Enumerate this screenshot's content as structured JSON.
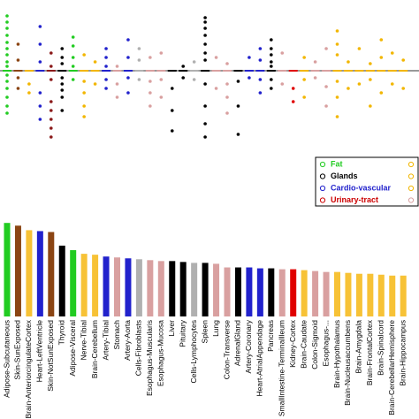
{
  "chart_data": [
    {
      "type": "strip",
      "ylim": [
        -90,
        65
      ],
      "groups": [
        {
          "color": "#22cc22",
          "values": [
            62,
            55,
            48,
            40,
            32,
            25,
            18,
            10,
            5,
            -5,
            -12,
            -20,
            -30,
            -40,
            -48
          ]
        },
        {
          "color": "#8b4513",
          "values": [
            30,
            12,
            -8,
            -20
          ]
        },
        {
          "color": "#f2b600",
          "values": [
            -15,
            -25
          ]
        },
        {
          "color": "#2222cc",
          "values": [
            50,
            30,
            10,
            -25,
            -40,
            -55
          ]
        },
        {
          "color": "#8b1a1a",
          "values": [
            20,
            5,
            -10,
            -35,
            -45,
            -55,
            -65,
            -75
          ]
        },
        {
          "color": "#000000",
          "values": [
            25,
            15,
            8,
            -8,
            -15,
            -22,
            -30,
            -45
          ]
        },
        {
          "color": "#22cc22",
          "values": [
            38,
            28,
            15,
            5,
            -10
          ]
        },
        {
          "color": "#f2b600",
          "values": [
            18,
            -12,
            -25,
            -40,
            -52
          ]
        },
        {
          "color": "#f2b600",
          "values": [
            10,
            -15
          ]
        },
        {
          "color": "#2222cc",
          "values": [
            25,
            15,
            5,
            -10,
            -20
          ]
        },
        {
          "color": "#d9a0a0",
          "values": [
            5,
            -15,
            -30
          ]
        },
        {
          "color": "#2222cc",
          "values": [
            35,
            15,
            -8,
            -25
          ]
        },
        {
          "color": "#b0b0b0",
          "values": [
            25,
            12,
            -10
          ]
        },
        {
          "color": "#d9a0a0",
          "values": [
            15,
            -12,
            -25,
            -40
          ]
        },
        {
          "color": "#d9a0a0",
          "values": [
            20,
            -10,
            -30
          ]
        },
        {
          "color": "#000000",
          "values": [
            -20,
            -45,
            -68
          ]
        },
        {
          "color": "#000000",
          "values": [
            5,
            -8
          ]
        },
        {
          "color": "#b0b0b0",
          "values": [
            10,
            -10
          ]
        },
        {
          "color": "#000000",
          "values": [
            60,
            55,
            48,
            40,
            30,
            20,
            12,
            -15,
            -40,
            -60,
            -75
          ]
        },
        {
          "color": "#d9a0a0",
          "values": [
            15,
            -20
          ]
        },
        {
          "color": "#d9a0a0",
          "values": [
            8,
            -15,
            -30,
            -48
          ]
        },
        {
          "color": "#000000",
          "values": [
            -12,
            -40,
            -72
          ]
        },
        {
          "color": "#2222cc",
          "values": [
            15,
            -8
          ]
        },
        {
          "color": "#2222cc",
          "values": [
            25,
            12,
            -10,
            -25
          ]
        },
        {
          "color": "#000000",
          "values": [
            35,
            25,
            18,
            10,
            5,
            -10,
            -20
          ]
        },
        {
          "color": "#d9a0a0",
          "values": [
            20,
            -15
          ]
        },
        {
          "color": "#e00000",
          "values": [
            -20,
            -35
          ]
        },
        {
          "color": "#f2b600",
          "values": [
            15,
            -10,
            -30
          ]
        },
        {
          "color": "#d9a0a0",
          "values": [
            10,
            -8
          ]
        },
        {
          "color": "#d9a0a0",
          "values": [
            25,
            -18,
            -40
          ]
        },
        {
          "color": "#f2b600",
          "values": [
            45,
            30,
            18,
            -12,
            -30,
            -52
          ]
        },
        {
          "color": "#f2b600",
          "values": [
            10,
            -20
          ]
        },
        {
          "color": "#f2b600",
          "values": [
            25,
            -15
          ]
        },
        {
          "color": "#f2b600",
          "values": [
            8,
            -10,
            -40
          ]
        },
        {
          "color": "#f2b600",
          "values": [
            35,
            15,
            -25
          ]
        },
        {
          "color": "#f2b600",
          "values": [
            20,
            -15
          ]
        },
        {
          "color": "#f2b600",
          "values": [
            12,
            -20
          ]
        }
      ],
      "legend": [
        {
          "name": "Fat",
          "color": "#22cc22"
        },
        {
          "name": "Glands",
          "color": "#000000"
        },
        {
          "name": "Cardio-vascular",
          "color": "#2222cc"
        },
        {
          "name": "Urinary-tract",
          "color": "#cc0000"
        }
      ],
      "legend_extra_colors": [
        "#f2b600",
        "#f2b600",
        "#f2b600",
        "#d9a0a0"
      ]
    },
    {
      "type": "bar",
      "ylim": [
        0,
        110
      ],
      "categories": [
        "Adipose-Subcutaneous",
        "Skin-SunExposed",
        "Brain-AnteriorcingulateCortex",
        "Heart-LeftVentricle",
        "Skin-NotSunExposed",
        "Thyroid",
        "Adipose-Visceral",
        "Nerve-Tibial",
        "Brain-Cerebellum",
        "Artery-Tibial",
        "Stomach",
        "Artery-Aorta",
        "Cells-Fibroblasts",
        "Esophagus-Muscularis",
        "Esophagus-Mucosa",
        "Liver",
        "Pituitary",
        "Cells-Lymphocytes",
        "Spleen",
        "Lung",
        "Colon-Transverse",
        "AdrenalGland",
        "Artery-Coronary",
        "Heart-AtrialAppendage",
        "Pancreas",
        "SmallIntestine-TerminalIleum",
        "Kidney-Cortex",
        "Brain-Caudate",
        "Colon-Sigmoid",
        "Esophagus-...",
        "Brain-Hypothalamus",
        "Brain-Nucleusaccumbens",
        "Brain-Amygdala",
        "Brain-FrontalCortex",
        "Brain-Spinalcord",
        "Brain-CerebellarHemisphere",
        "Brain-Hippocampus"
      ],
      "values": [
        103,
        100,
        95,
        94,
        93,
        78,
        73,
        69,
        68,
        66,
        65,
        64,
        63,
        62,
        61,
        61,
        60,
        59,
        59,
        58,
        54,
        54,
        54,
        53,
        53,
        52,
        52,
        51,
        50,
        49,
        49,
        48,
        47,
        47,
        46,
        45,
        45
      ],
      "colors": [
        "#22cc22",
        "#8b4513",
        "#f7c236",
        "#2222cc",
        "#8b4513",
        "#000000",
        "#22cc22",
        "#f7c236",
        "#f7c236",
        "#2222cc",
        "#d9a0a0",
        "#2222cc",
        "#b0b0b0",
        "#d9a0a0",
        "#d9a0a0",
        "#000000",
        "#000000",
        "#b0b0b0",
        "#000000",
        "#d9a0a0",
        "#d9a0a0",
        "#000000",
        "#2222cc",
        "#2222cc",
        "#000000",
        "#d9a0a0",
        "#e00000",
        "#f7c236",
        "#d9a0a0",
        "#d9a0a0",
        "#f7c236",
        "#f7c236",
        "#f7c236",
        "#f7c236",
        "#f7c236",
        "#f7c236",
        "#f7c236"
      ]
    }
  ]
}
